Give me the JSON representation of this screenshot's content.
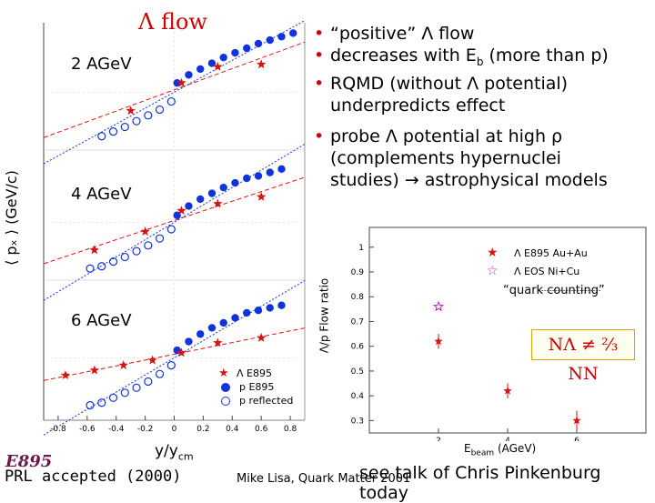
{
  "header": {
    "title": "Λ flow"
  },
  "bullets": [
    {
      "lines": [
        "“positive” Λ flow"
      ]
    },
    {
      "lines": [
        "decreases with E",
        "b",
        " (more than p)"
      ]
    },
    {
      "lines": [
        "RQMD (without Λ potential)",
        "underpredicts effect"
      ]
    },
    {
      "lines": [
        "probe Λ potential at high ρ",
        "(complements hypernuclei",
        "studies) → astrophysical models"
      ]
    }
  ],
  "flow_panels": {
    "ylabel": "⟨ pₓ ⟩ (GeV/c)",
    "xlabel_main": "y/y",
    "xlabel_sub": "cm",
    "energies": [
      "2 AGeV",
      "4 AGeV",
      "6 AGeV"
    ],
    "xticks": [
      "-0.8",
      "-0.6",
      "-0.4",
      "-0.2",
      "0",
      "0.2",
      "0.4",
      "0.6",
      "0.8"
    ],
    "legend": [
      "Λ E895",
      "p E895",
      "p reflected"
    ]
  },
  "ratio_panel": {
    "ylabel": "Λ/p Flow ratio",
    "xlabel_main": "E",
    "xlabel_sub": "beam",
    "xlabel_unit": " (AGeV)",
    "yticks": [
      "1",
      "0.9",
      "0.8",
      "0.7",
      "0.6",
      "0.5",
      "0.4",
      "0.3"
    ],
    "xticks": [
      "2",
      "4",
      "6"
    ],
    "legend": [
      "Λ E895 Au+Au",
      "Λ EOS Ni+Cu"
    ],
    "quark_counting": "“quark counting”",
    "inequality": "NΛ ≠ ⅔ NN"
  },
  "footer": {
    "paper": "PRL accepted (2000)",
    "credit": "Mike Lisa, Quark Matter 2001",
    "talk": "see talk of Chris Pinkenburg today",
    "logo": "E895"
  },
  "colors": {
    "accent": "#cc0000",
    "proton": "#1133dd",
    "lambda": "#dd1111",
    "eos": "#bb22cc"
  },
  "chart_data": [
    {
      "type": "scatter",
      "panel": "2 AGeV",
      "series": [
        {
          "name": "p E895",
          "x": [
            0.02,
            0.1,
            0.18,
            0.26,
            0.34,
            0.42,
            0.5,
            0.58,
            0.66,
            0.74,
            0.82
          ],
          "y": [
            0.04,
            0.075,
            0.1,
            0.125,
            0.15,
            0.17,
            0.19,
            0.21,
            0.225,
            0.24,
            0.255
          ]
        },
        {
          "name": "p reflected",
          "x": [
            -0.02,
            -0.1,
            -0.18,
            -0.26,
            -0.34,
            -0.42,
            -0.5
          ],
          "y": [
            -0.04,
            -0.075,
            -0.1,
            -0.125,
            -0.15,
            -0.17,
            -0.19
          ]
        },
        {
          "name": "Λ E895",
          "x": [
            -0.3,
            0.05,
            0.3,
            0.6
          ],
          "y": [
            -0.08,
            0.04,
            0.11,
            0.12
          ]
        }
      ]
    },
    {
      "type": "scatter",
      "panel": "4 AGeV",
      "series": [
        {
          "name": "p E895",
          "x": [
            0.02,
            0.1,
            0.18,
            0.26,
            0.34,
            0.42,
            0.5,
            0.58,
            0.66,
            0.74
          ],
          "y": [
            0.03,
            0.07,
            0.1,
            0.125,
            0.15,
            0.17,
            0.19,
            0.2,
            0.215,
            0.23
          ]
        },
        {
          "name": "p reflected",
          "x": [
            -0.02,
            -0.1,
            -0.18,
            -0.26,
            -0.34,
            -0.42,
            -0.5,
            -0.58
          ],
          "y": [
            -0.03,
            -0.07,
            -0.1,
            -0.125,
            -0.15,
            -0.17,
            -0.19,
            -0.2
          ]
        },
        {
          "name": "Λ E895",
          "x": [
            -0.55,
            -0.2,
            0.05,
            0.3,
            0.6
          ],
          "y": [
            -0.12,
            -0.04,
            0.05,
            0.08,
            0.11
          ]
        }
      ]
    },
    {
      "type": "scatter",
      "panel": "6 AGeV",
      "series": [
        {
          "name": "p E895",
          "x": [
            0.02,
            0.1,
            0.18,
            0.26,
            0.34,
            0.42,
            0.5,
            0.58,
            0.66,
            0.74
          ],
          "y": [
            0.03,
            0.065,
            0.095,
            0.12,
            0.14,
            0.16,
            0.18,
            0.19,
            0.2,
            0.21
          ]
        },
        {
          "name": "p reflected",
          "x": [
            -0.02,
            -0.1,
            -0.18,
            -0.26,
            -0.34,
            -0.42,
            -0.5,
            -0.58
          ],
          "y": [
            -0.03,
            -0.065,
            -0.095,
            -0.12,
            -0.14,
            -0.16,
            -0.18,
            -0.19
          ]
        },
        {
          "name": "Λ E895",
          "x": [
            -0.75,
            -0.55,
            -0.35,
            -0.15,
            0.05,
            0.3,
            0.6
          ],
          "y": [
            -0.07,
            -0.05,
            -0.03,
            -0.01,
            0.02,
            0.06,
            0.08
          ]
        }
      ]
    },
    {
      "type": "scatter",
      "panel": "ratio",
      "xlim": [
        0,
        8
      ],
      "ylim": [
        0.25,
        1.08
      ],
      "series": [
        {
          "name": "Λ E895 Au+Au",
          "x": [
            2,
            4,
            6
          ],
          "y": [
            0.62,
            0.42,
            0.3
          ],
          "yerr": [
            0.03,
            0.03,
            0.04
          ]
        },
        {
          "name": "Λ EOS Ni+Cu",
          "x": [
            2
          ],
          "y": [
            0.76
          ]
        }
      ],
      "reference_line": 0.825
    }
  ]
}
